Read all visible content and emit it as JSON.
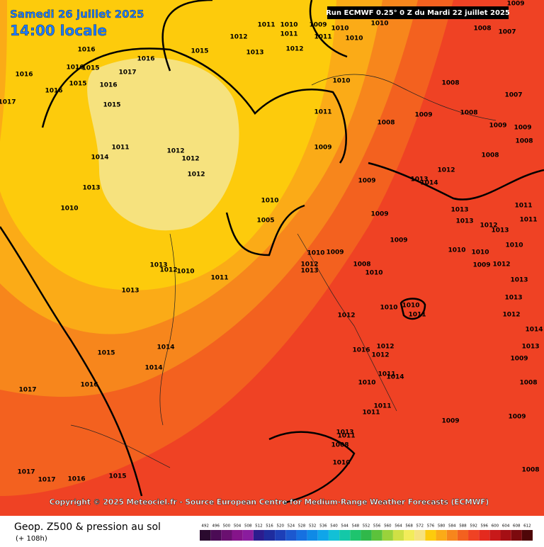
{
  "header": {
    "date": "Samedi 26 juillet 2025",
    "time": "14:00 locale",
    "run": "Run ECMWF 0.25° 0 Z du Mardi 22 juillet 2025"
  },
  "copyright": "Copyright © 2025 Meteociel.fr - Source European Centre for Medium-Range Weather Forecasts (ECMWF)",
  "footer": {
    "title": "Geop. Z500 & pression au sol",
    "lead": "(+ 108h)"
  },
  "colorbar": {
    "labels": [
      "492",
      "496",
      "500",
      "504",
      "508",
      "512",
      "516",
      "520",
      "524",
      "528",
      "532",
      "536",
      "540",
      "544",
      "548",
      "552",
      "556",
      "560",
      "564",
      "568",
      "572",
      "576",
      "580",
      "584",
      "588",
      "592",
      "596",
      "600",
      "604",
      "608",
      "612"
    ],
    "colors": [
      "#2a0a2e",
      "#4b0b55",
      "#6a1070",
      "#85148a",
      "#8a1c9e",
      "#2b1c8e",
      "#1e2c9e",
      "#1d3fb7",
      "#1c58cf",
      "#1670e0",
      "#0f8ae6",
      "#0fa5e9",
      "#12c0d6",
      "#14c8a8",
      "#1ec46e",
      "#30b84a",
      "#5cc23b",
      "#9ad23b",
      "#cfe045",
      "#f2ec5a",
      "#f6e27e",
      "#fdcb0c",
      "#fbab17",
      "#f7861c",
      "#f3611f",
      "#ef4224",
      "#e42a1e",
      "#c8191a",
      "#a50f14",
      "#7c0a0e",
      "#4e0608"
    ]
  },
  "pressure_labels": [
    "1011",
    "1010",
    "1009",
    "1010",
    "1010",
    "1009",
    "1008",
    "1007",
    "1011",
    "1012",
    "1011",
    "1010",
    "1016",
    "1015",
    "1013",
    "1012",
    "1016",
    "1015",
    "1016",
    "1017",
    "1016",
    "1016",
    "1015",
    "1016",
    "1017",
    "1015",
    "1010",
    "1008",
    "1007",
    "1011",
    "1009",
    "1008",
    "1008",
    "1009",
    "1009",
    "1008",
    "1011",
    "1014",
    "1012",
    "1012",
    "1012",
    "1009",
    "1008",
    "1012",
    "1013",
    "1009",
    "1013",
    "1014",
    "1010",
    "1010",
    "1009",
    "1013",
    "1013",
    "1011",
    "1011",
    "1005",
    "1009",
    "1012",
    "1013",
    "1010",
    "1010",
    "1009",
    "1010",
    "1010",
    "1012",
    "1013",
    "1008",
    "1010",
    "1013",
    "1012",
    "1010",
    "1011",
    "1012",
    "1009",
    "1013",
    "1013",
    "1010",
    "1010",
    "1011",
    "1012",
    "1013",
    "1012",
    "1014",
    "1015",
    "1014",
    "1016",
    "1012",
    "1012",
    "1013",
    "1009",
    "1014",
    "1011",
    "1014",
    "1010",
    "1016",
    "1017",
    "1008",
    "1011",
    "1011",
    "1009",
    "1009",
    "1013",
    "1011",
    "1008",
    "1010",
    "1008",
    "1017",
    "1017",
    "1016",
    "1015"
  ]
}
